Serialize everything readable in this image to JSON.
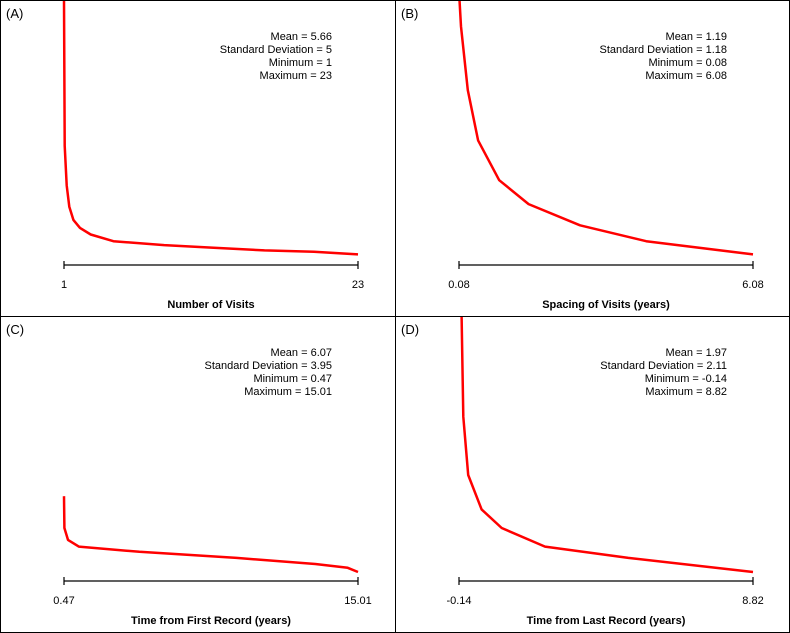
{
  "chart_data": [
    {
      "type": "line",
      "panel": "(A)",
      "xlabel": "Number of Visits",
      "xlim": [
        1,
        23
      ],
      "tick_labels": [
        "1",
        "23"
      ],
      "stats": [
        "Mean = 5.66",
        "Standard Deviation = 5",
        "Minimum = 1",
        "Maximum = 23"
      ],
      "color": "#ff0000",
      "x": [
        1,
        1.05,
        1.2,
        1.4,
        1.7,
        2.2,
        3,
        4.7,
        8.5,
        12.2,
        16,
        19.7,
        23
      ],
      "y": [
        1.0,
        0.45,
        0.3,
        0.22,
        0.17,
        0.14,
        0.115,
        0.09,
        0.075,
        0.065,
        0.055,
        0.05,
        0.04
      ]
    },
    {
      "type": "line",
      "panel": "(B)",
      "xlabel": "Spacing of Visits (years)",
      "xlim": [
        0.08,
        6.08
      ],
      "tick_labels": [
        "0.08",
        "6.08"
      ],
      "stats": [
        "Mean = 1.19",
        "Standard Deviation = 1.18",
        "Minimum = 0.08",
        "Maximum = 6.08"
      ],
      "color": "#ff0000",
      "x": [
        0.08,
        0.09,
        0.12,
        0.26,
        0.47,
        0.9,
        1.5,
        2.55,
        3.9,
        6.08
      ],
      "y": [
        1.2,
        1.0,
        0.9,
        0.66,
        0.47,
        0.32,
        0.23,
        0.15,
        0.09,
        0.04
      ]
    },
    {
      "type": "line",
      "panel": "(C)",
      "xlabel": "Time from First Record (years)",
      "xlim": [
        0.47,
        15.01
      ],
      "tick_labels": [
        "0.47",
        "15.01"
      ],
      "stats": [
        "Mean = 6.07",
        "Standard Deviation = 3.95",
        "Minimum = 0.47",
        "Maximum = 15.01"
      ],
      "color": "#ff0000",
      "x": [
        0.47,
        0.49,
        0.67,
        1.2,
        4.2,
        9.0,
        12.9,
        14.5,
        15.01
      ],
      "y": [
        0.32,
        0.2,
        0.155,
        0.13,
        0.11,
        0.087,
        0.064,
        0.05,
        0.034
      ]
    },
    {
      "type": "line",
      "panel": "(D)",
      "xlabel": "Time from Last Record (years)",
      "xlim": [
        -0.14,
        8.82
      ],
      "tick_labels": [
        "-0.14",
        "8.82"
      ],
      "stats": [
        "Mean = 1.97",
        "Standard Deviation = 2.11",
        "Minimum = -0.14",
        "Maximum = 8.82"
      ],
      "color": "#ff0000",
      "x": [
        -0.06,
        -0.01,
        0.14,
        0.55,
        1.16,
        2.48,
        5.02,
        8.82
      ],
      "y": [
        1.0,
        0.62,
        0.4,
        0.27,
        0.2,
        0.13,
        0.087,
        0.034
      ]
    }
  ]
}
